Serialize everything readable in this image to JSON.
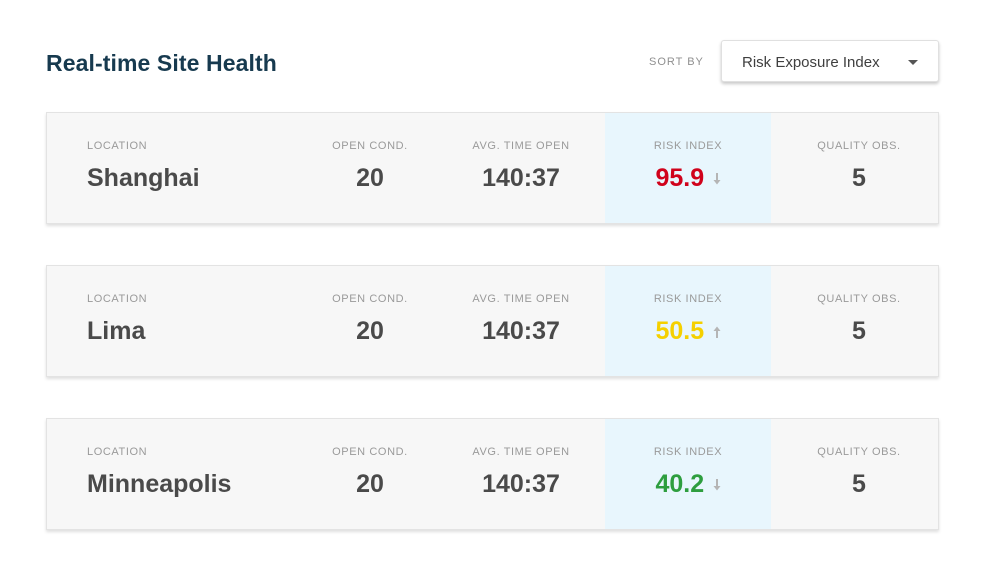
{
  "page": {
    "title": "Real-time Site Health"
  },
  "sort": {
    "label": "SORT BY",
    "value": "Risk Exposure Index",
    "icon": "chevron-down-icon"
  },
  "columns": {
    "location": "LOCATION",
    "open_cond": "OPEN COND.",
    "avg_time_open": "AVG. TIME OPEN",
    "risk_index": "RISK INDEX",
    "quality_obs": "QUALITY OBS."
  },
  "sites": [
    {
      "location": "Shanghai",
      "open_cond": "20",
      "avg_time_open": "140:37",
      "risk_index": "95.9",
      "risk_color": "#d0021b",
      "trend": "down"
    },
    {
      "location": "Lima",
      "open_cond": "20",
      "avg_time_open": "140:37",
      "risk_index": "50.5",
      "risk_color": "#f5d000",
      "trend": "up"
    },
    {
      "location": "Minneapolis",
      "open_cond": "20",
      "avg_time_open": "140:37",
      "risk_index": "40.2",
      "risk_color": "#2e9e3f",
      "trend": "down"
    }
  ],
  "quality_obs_values": [
    "5",
    "5",
    "5"
  ]
}
